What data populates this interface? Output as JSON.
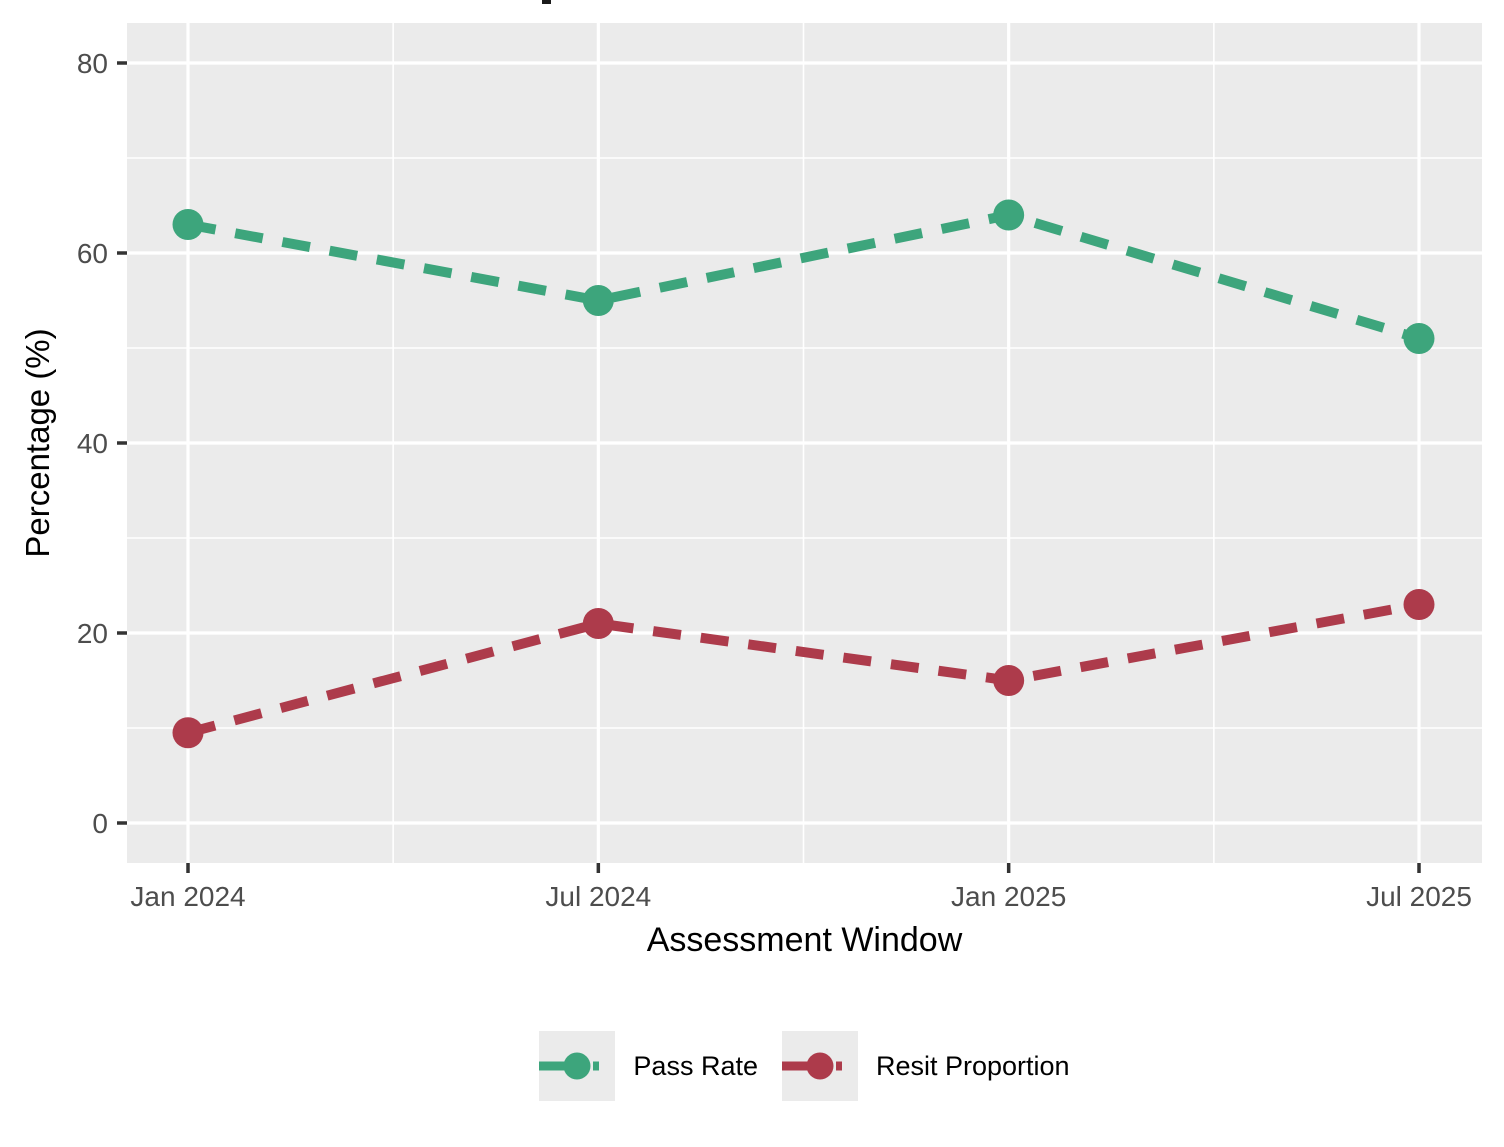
{
  "chart_data": {
    "type": "line",
    "xlabel": "Assessment Window",
    "ylabel": "Percentage (%)",
    "categories": [
      "Jan 2024",
      "Jul 2024",
      "Jan 2025",
      "Jul 2025"
    ],
    "series": [
      {
        "name": "Pass Rate",
        "color": "#3DA57C",
        "values": [
          63,
          55,
          64,
          51
        ]
      },
      {
        "name": "Resit Proportion",
        "color": "#AD3B4B",
        "values": [
          9.5,
          21,
          15,
          23
        ]
      }
    ],
    "ylim": [
      0,
      80
    ],
    "yticks": [
      0,
      20,
      40,
      60,
      80
    ],
    "grid": "major and minor white gridlines on gray panel",
    "legend_position": "bottom",
    "line_style": "dashed",
    "marker": "circle"
  },
  "style": {
    "panel_bg": "#EBEBEB",
    "grid_color": "#FFFFFF",
    "tick_label_color": "#4D4D4D",
    "axis_title_color": "#000000",
    "tick_mark_color": "#333333",
    "legend_key_bg": "#EBEBEB"
  }
}
